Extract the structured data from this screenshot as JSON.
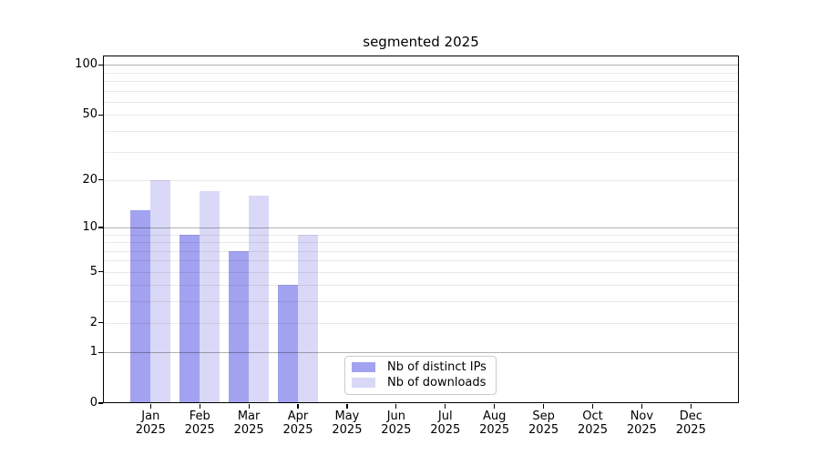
{
  "title": "segmented 2025",
  "chart_data": {
    "type": "bar",
    "title": "segmented 2025",
    "categories": [
      "Jan",
      "Feb",
      "Mar",
      "Apr",
      "May",
      "Jun",
      "Jul",
      "Aug",
      "Sep",
      "Oct",
      "Nov",
      "Dec"
    ],
    "category_year": "2025",
    "series": [
      {
        "name": "Nb of distinct IPs",
        "color": "#a2a2f0",
        "values": [
          13,
          9,
          7,
          4,
          null,
          null,
          null,
          null,
          null,
          null,
          null,
          null
        ]
      },
      {
        "name": "Nb of downloads",
        "color": "#d9d9f7",
        "values": [
          20,
          17,
          16,
          9,
          null,
          null,
          null,
          null,
          null,
          null,
          null,
          null
        ]
      }
    ],
    "xlabel": "",
    "ylabel": "",
    "y_scale": "log1p",
    "ylim": [
      0,
      113
    ],
    "y_ticks": [
      0,
      1,
      2,
      5,
      10,
      20,
      50,
      100
    ],
    "grid": true,
    "grid_major": [
      1,
      10,
      100
    ],
    "grid_minor": [
      2,
      3,
      4,
      5,
      6,
      7,
      8,
      9,
      20,
      30,
      40,
      50,
      60,
      70,
      80,
      90
    ],
    "legend_position": "lower center"
  }
}
